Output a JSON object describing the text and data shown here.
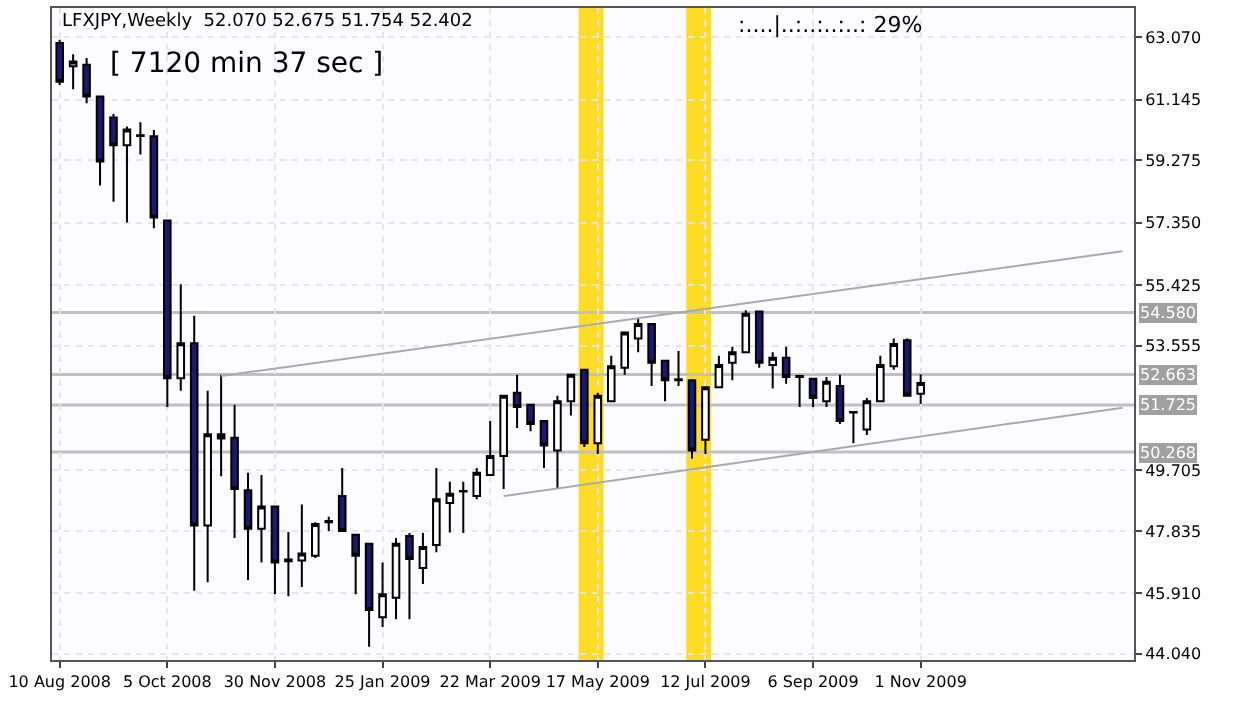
{
  "chart_data": {
    "type": "candlestick",
    "title": "LFXJPY,Weekly  52.070 52.675 51.754 52.402",
    "annotations": [
      "[ 7120 min 37 sec ]",
      ":....|..:..:..:..: 29%"
    ],
    "x": [
      "2008-08-10",
      "2008-08-17",
      "2008-08-24",
      "2008-08-31",
      "2008-09-07",
      "2008-09-14",
      "2008-09-21",
      "2008-09-28",
      "2008-10-05",
      "2008-10-12",
      "2008-10-19",
      "2008-10-26",
      "2008-11-02",
      "2008-11-09",
      "2008-11-16",
      "2008-11-23",
      "2008-11-30",
      "2008-12-07",
      "2008-12-14",
      "2008-12-21",
      "2008-12-28",
      "2009-01-04",
      "2009-01-11",
      "2009-01-18",
      "2009-01-25",
      "2009-02-01",
      "2009-02-08",
      "2009-02-15",
      "2009-02-22",
      "2009-03-01",
      "2009-03-08",
      "2009-03-15",
      "2009-03-22",
      "2009-03-29",
      "2009-04-05",
      "2009-04-12",
      "2009-04-19",
      "2009-04-26",
      "2009-05-03",
      "2009-05-10",
      "2009-05-17",
      "2009-05-24",
      "2009-05-31",
      "2009-06-07",
      "2009-06-14",
      "2009-06-21",
      "2009-06-28",
      "2009-07-05",
      "2009-07-12",
      "2009-07-19",
      "2009-07-26",
      "2009-08-02",
      "2009-08-09",
      "2009-08-16",
      "2009-08-23",
      "2009-08-30",
      "2009-09-06",
      "2009-09-13",
      "2009-09-20",
      "2009-09-27",
      "2009-10-04",
      "2009-10-11",
      "2009-10-18",
      "2009-10-25",
      "2009-11-01"
    ],
    "ohlc": [
      [
        62.9,
        63.0,
        61.6,
        61.7
      ],
      [
        62.18,
        62.55,
        61.47,
        62.33
      ],
      [
        62.23,
        62.44,
        61.04,
        61.25
      ],
      [
        61.25,
        61.25,
        58.5,
        59.24
      ],
      [
        60.6,
        60.71,
        58.0,
        59.74
      ],
      [
        59.74,
        60.32,
        57.36,
        60.23
      ],
      [
        60.03,
        60.45,
        59.46,
        60.05
      ],
      [
        60.02,
        60.21,
        57.18,
        57.51
      ],
      [
        57.42,
        57.42,
        51.66,
        52.55
      ],
      [
        52.55,
        55.45,
        52.16,
        53.63
      ],
      [
        53.63,
        54.48,
        45.99,
        48.0
      ],
      [
        48.0,
        52.16,
        46.25,
        50.82
      ],
      [
        50.82,
        52.66,
        49.52,
        50.69
      ],
      [
        50.71,
        51.73,
        47.62,
        49.13
      ],
      [
        49.09,
        49.63,
        46.32,
        47.9
      ],
      [
        47.9,
        49.56,
        46.86,
        48.59
      ],
      [
        48.59,
        48.59,
        45.88,
        46.86
      ],
      [
        46.9,
        47.8,
        45.82,
        46.95
      ],
      [
        46.92,
        48.65,
        46.1,
        47.14
      ],
      [
        47.07,
        48.1,
        47.0,
        48.05
      ],
      [
        48.1,
        48.27,
        47.83,
        48.14
      ],
      [
        48.91,
        49.78,
        47.83,
        47.83
      ],
      [
        47.72,
        47.72,
        45.88,
        47.07
      ],
      [
        47.44,
        47.44,
        44.26,
        45.39
      ],
      [
        45.17,
        46.86,
        44.87,
        45.88
      ],
      [
        45.77,
        47.62,
        45.11,
        47.44
      ],
      [
        47.68,
        47.77,
        45.11,
        46.97
      ],
      [
        46.69,
        47.77,
        46.2,
        47.34
      ],
      [
        47.4,
        49.78,
        47.18,
        48.81
      ],
      [
        48.7,
        49.35,
        47.79,
        48.98
      ],
      [
        49.05,
        49.35,
        47.77,
        49.07
      ],
      [
        48.91,
        49.78,
        48.81,
        49.63
      ],
      [
        49.56,
        51.23,
        49.54,
        50.15
      ],
      [
        50.15,
        52.01,
        49.13,
        52.01
      ],
      [
        52.1,
        52.66,
        51.01,
        51.66
      ],
      [
        51.73,
        51.73,
        50.91,
        51.14
      ],
      [
        51.23,
        51.23,
        49.78,
        50.47
      ],
      [
        50.32,
        52.01,
        49.13,
        51.84
      ],
      [
        51.84,
        52.66,
        51.4,
        52.66
      ],
      [
        52.81,
        52.81,
        50.43,
        50.54
      ],
      [
        50.54,
        52.1,
        50.21,
        52.01
      ],
      [
        51.84,
        53.24,
        51.84,
        52.92
      ],
      [
        52.87,
        53.96,
        52.66,
        53.96
      ],
      [
        53.78,
        54.39,
        53.35,
        54.22
      ],
      [
        54.22,
        54.22,
        52.31,
        53.03
      ],
      [
        53.09,
        53.09,
        51.84,
        52.49
      ],
      [
        52.49,
        53.39,
        52.31,
        52.52
      ],
      [
        52.49,
        52.49,
        50.06,
        50.32
      ],
      [
        50.65,
        52.27,
        50.21,
        52.27
      ],
      [
        52.27,
        53.24,
        52.27,
        52.96
      ],
      [
        53.03,
        53.52,
        52.49,
        53.35
      ],
      [
        53.35,
        54.65,
        53.35,
        54.54
      ],
      [
        54.61,
        54.61,
        52.87,
        53.03
      ],
      [
        52.96,
        53.35,
        52.23,
        53.18
      ],
      [
        53.18,
        53.52,
        52.38,
        52.59
      ],
      [
        52.59,
        52.66,
        51.66,
        52.62
      ],
      [
        52.53,
        52.53,
        51.66,
        51.94
      ],
      [
        51.84,
        52.59,
        51.66,
        52.44
      ],
      [
        52.31,
        52.66,
        51.14,
        51.23
      ],
      [
        51.49,
        51.51,
        50.54,
        51.51
      ],
      [
        50.97,
        51.94,
        50.8,
        51.84
      ],
      [
        51.84,
        53.24,
        51.84,
        52.96
      ],
      [
        52.92,
        53.78,
        52.81,
        53.61
      ],
      [
        53.72,
        53.78,
        52.01,
        52.01
      ],
      [
        52.07,
        52.675,
        51.754,
        52.402
      ]
    ],
    "series": [
      {
        "type": "line",
        "x": [
          "2008-11-02",
          "2010-02-14"
        ],
        "values": [
          52.62,
          56.47
        ],
        "color": "#a9a9a9"
      },
      {
        "type": "line",
        "x": [
          "2009-03-29",
          "2010-02-14"
        ],
        "values": [
          48.91,
          51.64
        ],
        "color": "#a9a9a9"
      }
    ],
    "ref_lines": [
      {
        "axis": "y",
        "value": 54.58,
        "label": "54.580",
        "color": "#c0c0c0"
      },
      {
        "axis": "y",
        "value": 52.663,
        "label": "52.663",
        "color": "#c0c0c0"
      },
      {
        "axis": "y",
        "value": 51.725,
        "label": "51.725",
        "color": "#c0c0c0"
      },
      {
        "axis": "y",
        "value": 50.268,
        "label": "50.268",
        "color": "#c0c0c0"
      }
    ],
    "bands": [
      {
        "axis": "x",
        "from": "2009-05-07",
        "to": "2009-05-20",
        "color": "#ffd700"
      },
      {
        "axis": "x",
        "from": "2009-07-02",
        "to": "2009-07-15",
        "color": "#ffd700"
      }
    ],
    "xlim": [
      "2008-08-06",
      "2010-02-20"
    ],
    "ylim": [
      43.85,
      63.98
    ],
    "xticks": [
      {
        "value": "2008-08-10",
        "label": "10 Aug 2008"
      },
      {
        "value": "2008-10-05",
        "label": "5 Oct 2008"
      },
      {
        "value": "2008-11-30",
        "label": "30 Nov 2008"
      },
      {
        "value": "2009-01-25",
        "label": "25 Jan 2009"
      },
      {
        "value": "2009-03-22",
        "label": "22 Mar 2009"
      },
      {
        "value": "2009-05-17",
        "label": "17 May 2009"
      },
      {
        "value": "2009-07-12",
        "label": "12 Jul 2009"
      },
      {
        "value": "2009-09-06",
        "label": "6 Sep 2009"
      },
      {
        "value": "2009-11-01",
        "label": "1 Nov 2009"
      }
    ],
    "yticks": [
      {
        "value": 63.07,
        "label": "63.070"
      },
      {
        "value": 61.145,
        "label": "61.145"
      },
      {
        "value": 59.275,
        "label": "59.275"
      },
      {
        "value": 57.35,
        "label": "57.350"
      },
      {
        "value": 55.425,
        "label": "55.425"
      },
      {
        "value": 53.555,
        "label": "53.555"
      },
      {
        "value": 49.705,
        "label": "49.705"
      },
      {
        "value": 47.835,
        "label": "47.835"
      },
      {
        "value": 45.91,
        "label": "45.910"
      },
      {
        "value": 44.04,
        "label": "44.040"
      }
    ],
    "grid": true
  }
}
